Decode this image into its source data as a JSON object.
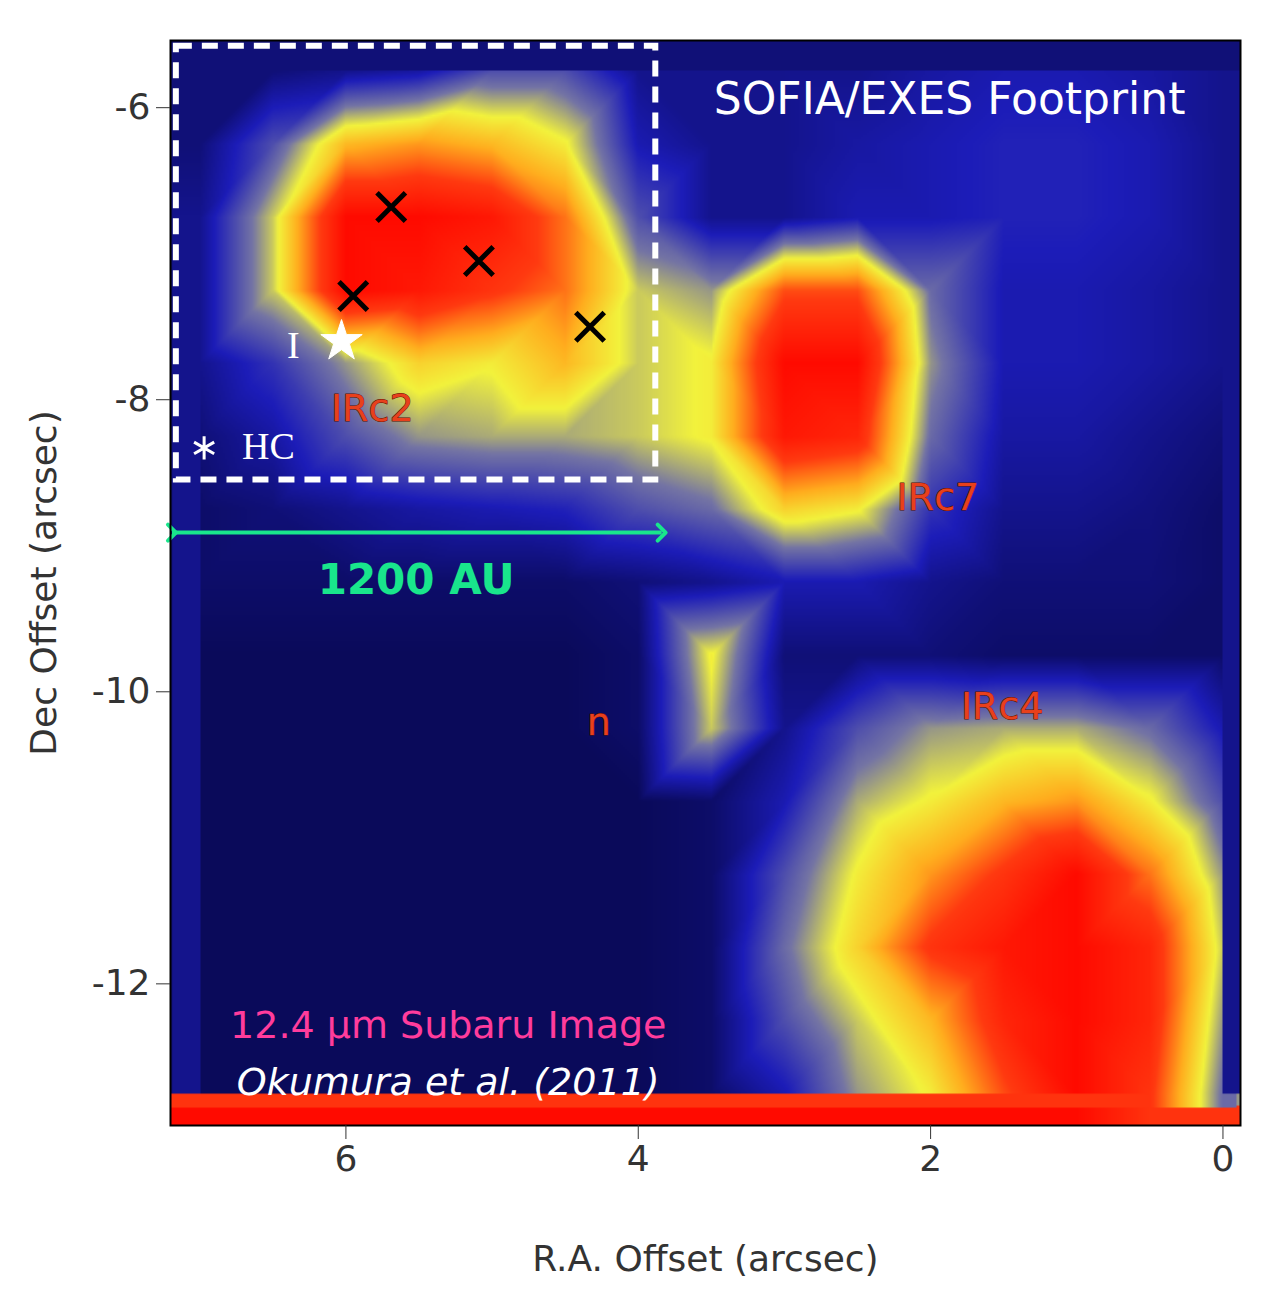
{
  "chart_data": {
    "type": "heatmap",
    "x_label": "R.A. Offset (arcsec)",
    "y_label": "Dec Offset (arcsec)",
    "xlim": [
      7.2,
      -0.12
    ],
    "ylim": [
      -12.97,
      -5.54
    ],
    "xticks": [
      6,
      4,
      2,
      0
    ],
    "yticks": [
      -6,
      -8,
      -10,
      -12
    ],
    "cells": {
      "x": [
        7.0,
        6.5,
        6.0,
        5.5,
        5.0,
        4.5,
        4.0,
        3.5,
        3.0,
        2.5,
        2.0,
        1.5,
        1.0,
        0.5,
        0.0
      ],
      "y": [
        -5.75,
        -6.25,
        -6.75,
        -7.25,
        -7.75,
        -8.25,
        -8.75,
        -9.25,
        -9.75,
        -10.25,
        -10.75,
        -11.25,
        -11.75,
        -12.25,
        -12.75
      ],
      "values": [
        [
          0.12,
          0.12,
          0.15,
          0.18,
          0.3,
          0.3,
          0.15,
          0.15,
          0.15,
          0.15,
          0.18,
          0.2,
          0.2,
          0.18,
          0.15
        ],
        [
          0.12,
          0.3,
          0.6,
          0.65,
          0.6,
          0.5,
          0.2,
          0.15,
          0.15,
          0.18,
          0.2,
          0.22,
          0.22,
          0.2,
          0.15
        ],
        [
          0.15,
          0.45,
          0.95,
          0.95,
          0.9,
          0.7,
          0.3,
          0.15,
          0.15,
          0.2,
          0.2,
          0.22,
          0.22,
          0.2,
          0.15
        ],
        [
          0.15,
          0.45,
          0.95,
          0.9,
          0.8,
          0.7,
          0.45,
          0.4,
          0.75,
          0.75,
          0.35,
          0.2,
          0.2,
          0.18,
          0.15
        ],
        [
          0.15,
          0.25,
          0.4,
          0.55,
          0.5,
          0.6,
          0.45,
          0.5,
          0.95,
          0.95,
          0.4,
          0.2,
          0.2,
          0.18,
          0.15
        ],
        [
          0.12,
          0.18,
          0.3,
          0.4,
          0.42,
          0.42,
          0.45,
          0.5,
          0.9,
          0.85,
          0.35,
          0.18,
          0.18,
          0.15,
          0.12
        ],
        [
          0.1,
          0.12,
          0.15,
          0.18,
          0.2,
          0.22,
          0.3,
          0.35,
          0.55,
          0.5,
          0.25,
          0.15,
          0.15,
          0.13,
          0.1
        ],
        [
          0.1,
          0.1,
          0.1,
          0.1,
          0.1,
          0.1,
          0.12,
          0.15,
          0.2,
          0.2,
          0.15,
          0.12,
          0.12,
          0.12,
          0.1
        ],
        [
          0.08,
          0.08,
          0.08,
          0.08,
          0.08,
          0.08,
          0.1,
          0.5,
          0.12,
          0.12,
          0.12,
          0.1,
          0.1,
          0.1,
          0.1
        ],
        [
          0.08,
          0.08,
          0.08,
          0.08,
          0.08,
          0.08,
          0.1,
          0.45,
          0.15,
          0.3,
          0.4,
          0.42,
          0.42,
          0.35,
          0.2
        ],
        [
          0.08,
          0.08,
          0.08,
          0.08,
          0.08,
          0.08,
          0.08,
          0.1,
          0.2,
          0.42,
          0.5,
          0.6,
          0.65,
          0.5,
          0.3
        ],
        [
          0.08,
          0.08,
          0.08,
          0.08,
          0.08,
          0.08,
          0.08,
          0.1,
          0.3,
          0.5,
          0.65,
          0.8,
          0.95,
          0.7,
          0.4
        ],
        [
          0.08,
          0.08,
          0.08,
          0.08,
          0.08,
          0.08,
          0.08,
          0.1,
          0.35,
          0.55,
          0.8,
          0.9,
          0.95,
          0.85,
          0.45
        ],
        [
          0.08,
          0.08,
          0.08,
          0.08,
          0.08,
          0.08,
          0.08,
          0.1,
          0.3,
          0.45,
          0.6,
          0.85,
          0.95,
          0.85,
          0.4
        ],
        [
          0.08,
          0.08,
          0.08,
          0.08,
          0.08,
          0.08,
          0.08,
          0.1,
          0.2,
          0.4,
          0.5,
          0.75,
          0.95,
          0.8,
          0.35
        ]
      ]
    },
    "annotations": {
      "footprint": {
        "x": [
          7.16,
          3.88
        ],
        "y": [
          -5.58,
          -8.55
        ],
        "color": "#ffffff",
        "line_style": "dashed"
      },
      "scale_bar": {
        "x": [
          7.19,
          3.84
        ],
        "y": -8.91,
        "color": "#19e68c"
      },
      "markers": [
        {
          "x": 5.69,
          "y": -6.68,
          "marker": "x",
          "color": "#000000"
        },
        {
          "x": 5.09,
          "y": -7.05,
          "marker": "x",
          "color": "#000000"
        },
        {
          "x": 5.95,
          "y": -7.29,
          "marker": "x",
          "color": "#000000"
        },
        {
          "x": 4.33,
          "y": -7.5,
          "marker": "x",
          "color": "#000000"
        },
        {
          "x": 6.03,
          "y": -7.6,
          "marker": "star",
          "color": "#ffffff"
        },
        {
          "x": 6.97,
          "y": -8.33,
          "marker": "asterisk",
          "color": "#ffffff"
        }
      ],
      "labels": [
        {
          "text": "SOFIA/EXES Footprint",
          "x": 1.87,
          "y": -5.95,
          "color": "#ffffff",
          "type": "title"
        },
        {
          "text": "I",
          "x": 6.36,
          "y": -7.63,
          "color": "#ffffff",
          "type": "marker_label"
        },
        {
          "text": "HC",
          "x": 6.53,
          "y": -8.32,
          "color": "#ffffff",
          "type": "marker_label"
        },
        {
          "text": "IRc2",
          "x": 5.82,
          "y": -8.06,
          "color": "#e8401c",
          "type": "source"
        },
        {
          "text": "IRc7",
          "x": 1.95,
          "y": -8.67,
          "color": "#e8401c",
          "type": "source"
        },
        {
          "text": "n",
          "x": 4.27,
          "y": -10.21,
          "color": "#e8401c",
          "type": "source"
        },
        {
          "text": "IRc4",
          "x": 1.51,
          "y": -10.1,
          "color": "#e8401c",
          "type": "source"
        },
        {
          "text": "1200 AU",
          "x": 5.52,
          "y": -9.24,
          "color": "#19e68c",
          "type": "scale"
        },
        {
          "text": "12.4 µm Subaru Image",
          "x": 5.3,
          "y": -12.29,
          "color": "#ff3c9c",
          "type": "caption"
        },
        {
          "text": "Okumura et al. (2011)",
          "x": 5.3,
          "y": -12.68,
          "color": "#ffffff",
          "type": "credit"
        }
      ]
    }
  }
}
